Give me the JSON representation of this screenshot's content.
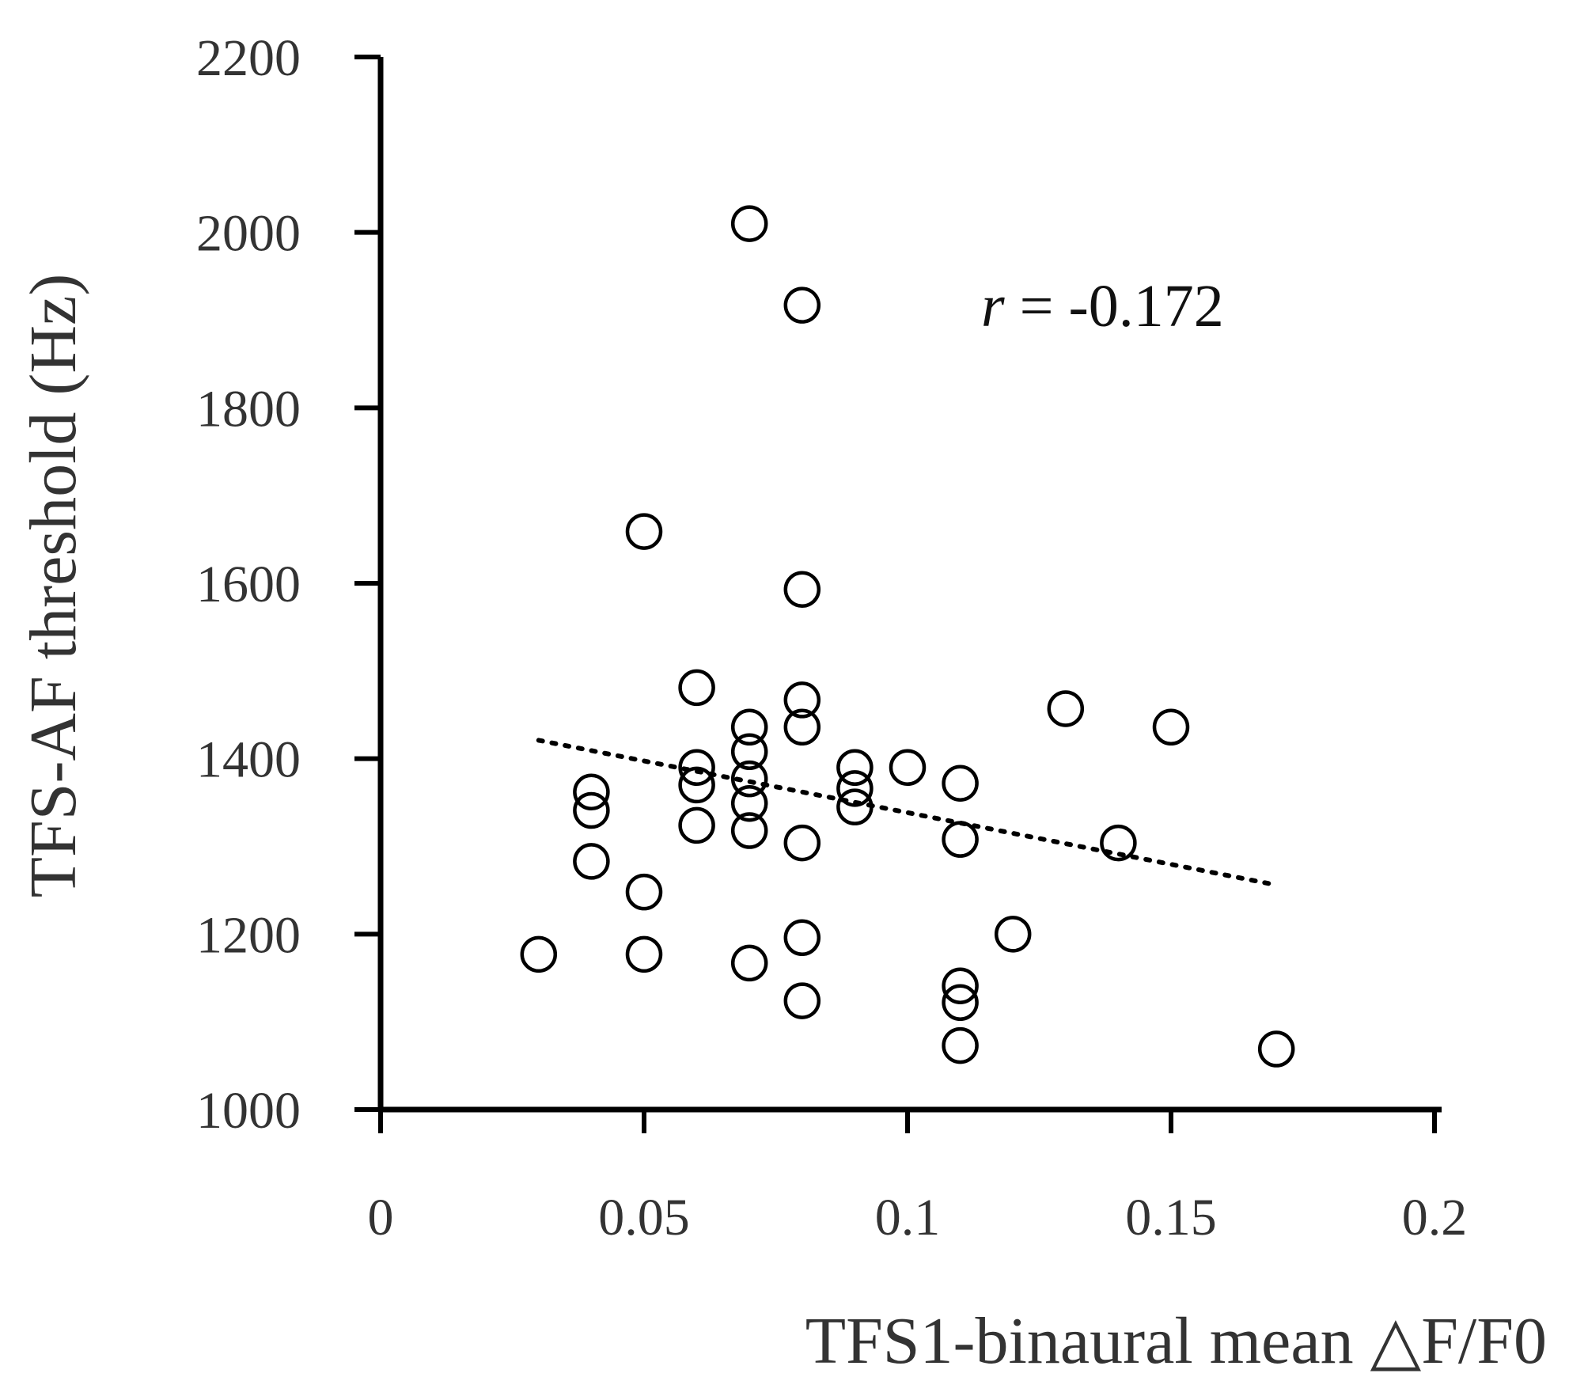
{
  "chart_data": {
    "type": "scatter",
    "xlabel": "TFS1-binaural mean △F/F0",
    "ylabel": "TFS-AF threshold (Hz)",
    "xlim": [
      0,
      0.2
    ],
    "ylim": [
      1000,
      2200
    ],
    "x_ticks": [
      "0",
      "0.05",
      "0.1",
      "0.15",
      "0.2"
    ],
    "y_ticks": [
      "1000",
      "1200",
      "1400",
      "1600",
      "1800",
      "2000",
      "2200"
    ],
    "grid": false,
    "annotation": {
      "prefix": "r",
      "text": " = -0.172"
    },
    "trendline": {
      "x": [
        0.03,
        0.17
      ],
      "y": [
        1421,
        1256
      ]
    },
    "points": [
      {
        "x": 0.03,
        "y": 1177
      },
      {
        "x": 0.04,
        "y": 1362
      },
      {
        "x": 0.04,
        "y": 1341
      },
      {
        "x": 0.04,
        "y": 1283
      },
      {
        "x": 0.05,
        "y": 1659
      },
      {
        "x": 0.05,
        "y": 1248
      },
      {
        "x": 0.05,
        "y": 1177
      },
      {
        "x": 0.06,
        "y": 1481
      },
      {
        "x": 0.06,
        "y": 1390
      },
      {
        "x": 0.06,
        "y": 1370
      },
      {
        "x": 0.06,
        "y": 1324
      },
      {
        "x": 0.07,
        "y": 2010
      },
      {
        "x": 0.07,
        "y": 1436
      },
      {
        "x": 0.07,
        "y": 1408
      },
      {
        "x": 0.07,
        "y": 1377
      },
      {
        "x": 0.07,
        "y": 1349
      },
      {
        "x": 0.07,
        "y": 1318
      },
      {
        "x": 0.07,
        "y": 1167
      },
      {
        "x": 0.08,
        "y": 1917
      },
      {
        "x": 0.08,
        "y": 1593
      },
      {
        "x": 0.08,
        "y": 1467
      },
      {
        "x": 0.08,
        "y": 1436
      },
      {
        "x": 0.08,
        "y": 1304
      },
      {
        "x": 0.08,
        "y": 1196
      },
      {
        "x": 0.08,
        "y": 1124
      },
      {
        "x": 0.09,
        "y": 1390
      },
      {
        "x": 0.09,
        "y": 1366
      },
      {
        "x": 0.09,
        "y": 1345
      },
      {
        "x": 0.1,
        "y": 1390
      },
      {
        "x": 0.11,
        "y": 1372
      },
      {
        "x": 0.11,
        "y": 1308
      },
      {
        "x": 0.11,
        "y": 1141
      },
      {
        "x": 0.11,
        "y": 1122
      },
      {
        "x": 0.11,
        "y": 1073
      },
      {
        "x": 0.12,
        "y": 1200
      },
      {
        "x": 0.13,
        "y": 1457
      },
      {
        "x": 0.14,
        "y": 1304
      },
      {
        "x": 0.15,
        "y": 1436
      },
      {
        "x": 0.17,
        "y": 1069
      }
    ]
  }
}
